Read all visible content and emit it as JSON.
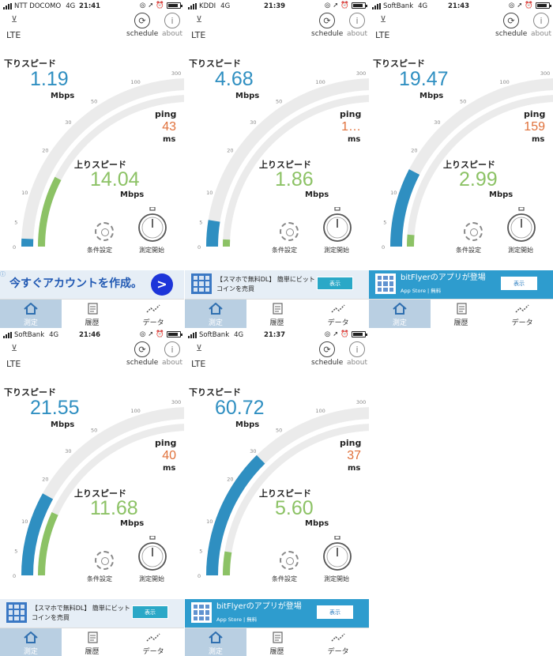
{
  "colors": {
    "download": "#2f8fc1",
    "upload": "#8cc265",
    "ping": "#e0713b",
    "track": "#ebebeb"
  },
  "common": {
    "network": "LTE",
    "schedule_label": "schedule",
    "about_label": "about",
    "download_label": "下りスピード",
    "upload_label": "上りスピード",
    "ping_label": "ping",
    "mbps": "Mbps",
    "ms": "ms",
    "settings_label": "条件設定",
    "start_label": "測定開始",
    "scale_ticks": [
      "0",
      "5",
      "10",
      "20",
      "30",
      "50",
      "100",
      "300",
      "1G"
    ],
    "tabs": [
      "測定",
      "履歴",
      "データ"
    ]
  },
  "screens": [
    {
      "carrier": "NTT DOCOMO",
      "net": "4G",
      "time": "21:41",
      "download": "1.19",
      "upload": "14.04",
      "ping": "43",
      "download_level": 0.03,
      "upload_level": 0.3,
      "ad": {
        "style": "banner",
        "text": "今すぐアカウントを作成。",
        "button": ">"
      }
    },
    {
      "carrier": "KDDI",
      "net": "4G",
      "time": "21:39",
      "download": "4.68",
      "upload": "1.86",
      "ping": "1…",
      "download_level": 0.1,
      "upload_level": 0.03,
      "ad": {
        "style": "app",
        "text": "【スマホで無料DL】 簡単にビットコインを売買",
        "button": "表示"
      }
    },
    {
      "carrier": "SoftBank",
      "net": "4G",
      "time": "21:43",
      "download": "19.47",
      "upload": "2.99",
      "ping": "159",
      "download_level": 0.3,
      "upload_level": 0.05,
      "ad": {
        "style": "bf",
        "text": "bitFlyerのアプリが登場",
        "sub": "App Store  |  無料",
        "button": "表示"
      }
    },
    {
      "carrier": "SoftBank",
      "net": "4G",
      "time": "21:46",
      "download": "21.55",
      "upload": "11.68",
      "ping": "40",
      "download_level": 0.32,
      "upload_level": 0.27,
      "ad": {
        "style": "app",
        "text": "【スマホで無料DL】 簡単にビットコインを売買",
        "button": "表示"
      }
    },
    {
      "carrier": "SoftBank",
      "net": "4G",
      "time": "21:37",
      "download": "60.72",
      "upload": "5.60",
      "ping": "37",
      "download_level": 0.5,
      "upload_level": 0.1,
      "ad": {
        "style": "bf",
        "text": "bitFlyerのアプリが登場",
        "sub": "App Store  |  無料",
        "button": "表示"
      }
    }
  ]
}
